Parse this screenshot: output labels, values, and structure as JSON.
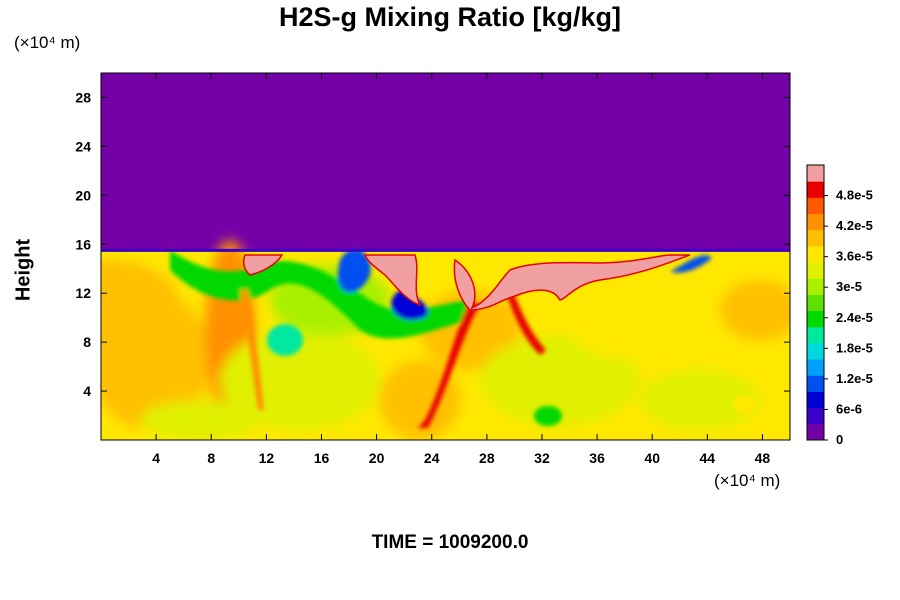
{
  "chart_data": {
    "type": "heatmap",
    "title": "H2S-g Mixing Ratio [kg/kg]",
    "ylabel": "Height",
    "x_unit_label": "(×10⁴ m)",
    "y_unit_label": "(×10⁴ m)",
    "time_label": "TIME = 1009200.0",
    "x_ticks": [
      4,
      8,
      12,
      16,
      20,
      24,
      28,
      32,
      36,
      40,
      44,
      48
    ],
    "y_ticks": [
      4,
      8,
      12,
      16,
      20,
      24,
      28
    ],
    "xlim": [
      0,
      50
    ],
    "ylim": [
      0,
      30
    ],
    "tropopause_height_approx": 15.5,
    "colorbar": {
      "tick_labels": [
        "0",
        "6e-6",
        "1.2e-5",
        "1.8e-5",
        "2.4e-5",
        "3e-5",
        "3.6e-5",
        "4.2e-5",
        "4.8e-5"
      ],
      "tick_values": [
        0,
        6e-06,
        1.2e-05,
        1.8e-05,
        2.4e-05,
        3e-05,
        3.6e-05,
        4.2e-05,
        4.8e-05
      ],
      "range": [
        0,
        5.4e-05
      ],
      "colors": [
        "#7400a8",
        "#3a00c8",
        "#0000d8",
        "#0050f0",
        "#00a0ff",
        "#00d8e0",
        "#00e8a0",
        "#00d800",
        "#60e000",
        "#a8f000",
        "#e0f000",
        "#ffe800",
        "#ffc000",
        "#ff9000",
        "#ff5800",
        "#e80000",
        "#f0a0a0"
      ]
    },
    "field": {
      "upper_value": 0,
      "lower_background_value": 3.5e-05,
      "plume_value": 5.2e-05
    }
  }
}
